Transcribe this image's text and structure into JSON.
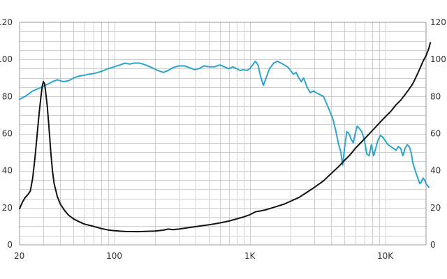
{
  "chart_data": {
    "type": "line",
    "xscale": "log",
    "xlim": [
      20,
      20000
    ],
    "ylim": [
      0,
      120
    ],
    "grid": true,
    "x_tick_labels": [
      {
        "value": 20,
        "label": "20"
      },
      {
        "value": 100,
        "label": "100"
      },
      {
        "value": 1000,
        "label": "1K"
      },
      {
        "value": 10000,
        "label": "10K"
      }
    ],
    "y_ticks": [
      0,
      20,
      40,
      60,
      80,
      100,
      120
    ],
    "y_tick_labels": [
      "0",
      "20",
      "40",
      "60",
      "80",
      "100",
      "120"
    ],
    "series": [
      {
        "color": "#2aa6d0",
        "axis": "left",
        "points": [
          [
            20,
            78.5
          ],
          [
            22,
            80
          ],
          [
            25,
            83
          ],
          [
            28,
            84.5
          ],
          [
            32,
            86.5
          ],
          [
            35,
            88
          ],
          [
            38,
            89
          ],
          [
            42,
            88
          ],
          [
            46,
            88.5
          ],
          [
            50,
            90
          ],
          [
            55,
            91
          ],
          [
            60,
            91.5
          ],
          [
            65,
            92
          ],
          [
            72,
            92.5
          ],
          [
            80,
            93.5
          ],
          [
            90,
            95
          ],
          [
            100,
            96
          ],
          [
            110,
            97
          ],
          [
            120,
            98
          ],
          [
            130,
            97.5
          ],
          [
            140,
            98
          ],
          [
            155,
            98
          ],
          [
            170,
            97
          ],
          [
            190,
            95.5
          ],
          [
            210,
            94
          ],
          [
            230,
            93
          ],
          [
            250,
            94
          ],
          [
            270,
            95.5
          ],
          [
            300,
            96.5
          ],
          [
            330,
            96.5
          ],
          [
            360,
            95.5
          ],
          [
            390,
            94.5
          ],
          [
            420,
            95
          ],
          [
            460,
            96.5
          ],
          [
            500,
            96
          ],
          [
            550,
            96
          ],
          [
            600,
            97
          ],
          [
            650,
            96
          ],
          [
            700,
            95
          ],
          [
            750,
            96
          ],
          [
            800,
            95
          ],
          [
            850,
            94
          ],
          [
            900,
            94.5
          ],
          [
            950,
            94
          ],
          [
            1000,
            95
          ],
          [
            1050,
            97
          ],
          [
            1100,
            99
          ],
          [
            1150,
            97
          ],
          [
            1200,
            91
          ],
          [
            1260,
            86
          ],
          [
            1320,
            90
          ],
          [
            1400,
            95
          ],
          [
            1500,
            98
          ],
          [
            1600,
            99
          ],
          [
            1700,
            98
          ],
          [
            1800,
            97
          ],
          [
            1900,
            96
          ],
          [
            2000,
            94
          ],
          [
            2100,
            92
          ],
          [
            2200,
            93
          ],
          [
            2300,
            90
          ],
          [
            2400,
            88
          ],
          [
            2500,
            90
          ],
          [
            2650,
            85
          ],
          [
            2800,
            82
          ],
          [
            2950,
            83
          ],
          [
            3100,
            82
          ],
          [
            3300,
            81
          ],
          [
            3500,
            80
          ],
          [
            3700,
            76
          ],
          [
            3900,
            72
          ],
          [
            4100,
            68
          ],
          [
            4300,
            62
          ],
          [
            4500,
            55
          ],
          [
            4700,
            50
          ],
          [
            4850,
            43
          ],
          [
            5000,
            52
          ],
          [
            5200,
            61
          ],
          [
            5400,
            60
          ],
          [
            5600,
            57
          ],
          [
            5800,
            55
          ],
          [
            6000,
            60
          ],
          [
            6200,
            64
          ],
          [
            6400,
            63
          ],
          [
            6700,
            61
          ],
          [
            7000,
            57
          ],
          [
            7300,
            49
          ],
          [
            7600,
            48
          ],
          [
            7900,
            54
          ],
          [
            8200,
            48
          ],
          [
            8500,
            52
          ],
          [
            8800,
            56
          ],
          [
            9200,
            59
          ],
          [
            9600,
            58
          ],
          [
            10000,
            56
          ],
          [
            10500,
            54
          ],
          [
            11000,
            53
          ],
          [
            11500,
            52
          ],
          [
            12000,
            51
          ],
          [
            12500,
            53
          ],
          [
            13000,
            52
          ],
          [
            13500,
            48
          ],
          [
            14000,
            52
          ],
          [
            14500,
            54
          ],
          [
            15000,
            53
          ],
          [
            15500,
            50
          ],
          [
            16000,
            44
          ],
          [
            17000,
            38
          ],
          [
            18000,
            33
          ],
          [
            18500,
            34
          ],
          [
            19000,
            36
          ],
          [
            19500,
            35
          ],
          [
            20000,
            33
          ],
          [
            21000,
            31
          ]
        ]
      },
      {
        "color": "#111111",
        "axis": "left",
        "points": [
          [
            20,
            19.5
          ],
          [
            21,
            23
          ],
          [
            22,
            25.5
          ],
          [
            23,
            27
          ],
          [
            24,
            29
          ],
          [
            25,
            36
          ],
          [
            26,
            47
          ],
          [
            27,
            60
          ],
          [
            28,
            72
          ],
          [
            29,
            82
          ],
          [
            29.5,
            86
          ],
          [
            30,
            88
          ],
          [
            30.5,
            87
          ],
          [
            31,
            84
          ],
          [
            32,
            75
          ],
          [
            33,
            63
          ],
          [
            34,
            50
          ],
          [
            35,
            40
          ],
          [
            36,
            33
          ],
          [
            38,
            26
          ],
          [
            40,
            22
          ],
          [
            43,
            18.5
          ],
          [
            46,
            16
          ],
          [
            50,
            14
          ],
          [
            55,
            12.5
          ],
          [
            60,
            11.2
          ],
          [
            70,
            10
          ],
          [
            80,
            8.8
          ],
          [
            90,
            8
          ],
          [
            100,
            7.6
          ],
          [
            120,
            7.2
          ],
          [
            150,
            7.1
          ],
          [
            200,
            7.4
          ],
          [
            230,
            7.9
          ],
          [
            250,
            8.5
          ],
          [
            270,
            8.2
          ],
          [
            300,
            8.5
          ],
          [
            350,
            9.2
          ],
          [
            400,
            9.8
          ],
          [
            500,
            10.8
          ],
          [
            600,
            11.8
          ],
          [
            700,
            12.8
          ],
          [
            800,
            14
          ],
          [
            900,
            15
          ],
          [
            1000,
            16.2
          ],
          [
            1100,
            17.8
          ],
          [
            1200,
            18.3
          ],
          [
            1300,
            18.8
          ],
          [
            1400,
            19.5
          ],
          [
            1600,
            20.8
          ],
          [
            1800,
            22
          ],
          [
            2000,
            23.5
          ],
          [
            2300,
            25.5
          ],
          [
            2600,
            28
          ],
          [
            3000,
            31
          ],
          [
            3500,
            34.5
          ],
          [
            4000,
            38.5
          ],
          [
            4500,
            42
          ],
          [
            5000,
            45.5
          ],
          [
            5500,
            48.5
          ],
          [
            6000,
            52
          ],
          [
            7000,
            57
          ],
          [
            8000,
            61.5
          ],
          [
            9000,
            65.5
          ],
          [
            10000,
            69
          ],
          [
            11000,
            72
          ],
          [
            12000,
            75.5
          ],
          [
            13000,
            78
          ],
          [
            14000,
            81
          ],
          [
            15000,
            84
          ],
          [
            16000,
            87
          ],
          [
            17000,
            91
          ],
          [
            18000,
            95
          ],
          [
            19000,
            99
          ],
          [
            20000,
            102
          ],
          [
            21000,
            106
          ],
          [
            21500,
            109
          ]
        ]
      }
    ]
  }
}
